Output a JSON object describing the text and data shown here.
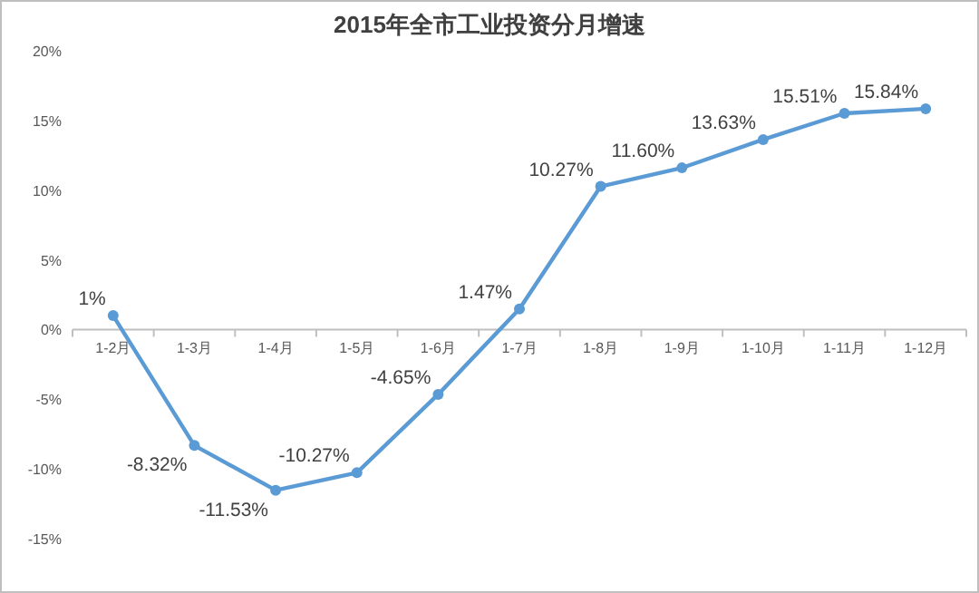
{
  "chart_data": {
    "type": "line",
    "title": "2015年全市工业投资分月增速",
    "categories": [
      "1-2月",
      "1-3月",
      "1-4月",
      "1-5月",
      "1-6月",
      "1-7月",
      "1-8月",
      "1-9月",
      "1-10月",
      "1-11月",
      "1-12月"
    ],
    "values": [
      1,
      -8.32,
      -11.53,
      -10.27,
      -4.65,
      1.47,
      10.27,
      11.6,
      13.63,
      15.51,
      15.84
    ],
    "value_labels": [
      "1%",
      "-8.32%",
      "-11.53%",
      "-10.27%",
      "-4.65%",
      "1.47%",
      "10.27%",
      "11.60%",
      "13.63%",
      "15.51%",
      "15.84%"
    ],
    "color": "#5b9bd5",
    "marker": "circle",
    "ylim": [
      -15,
      20
    ],
    "yticks": [
      {
        "value": -15,
        "label": "-15%"
      },
      {
        "value": -10,
        "label": "-10%"
      },
      {
        "value": -5,
        "label": "-5%"
      },
      {
        "value": 0,
        "label": "0%"
      },
      {
        "value": 5,
        "label": "5%"
      },
      {
        "value": 10,
        "label": "10%"
      },
      {
        "value": 15,
        "label": "15%"
      },
      {
        "value": 20,
        "label": "20%"
      }
    ]
  }
}
